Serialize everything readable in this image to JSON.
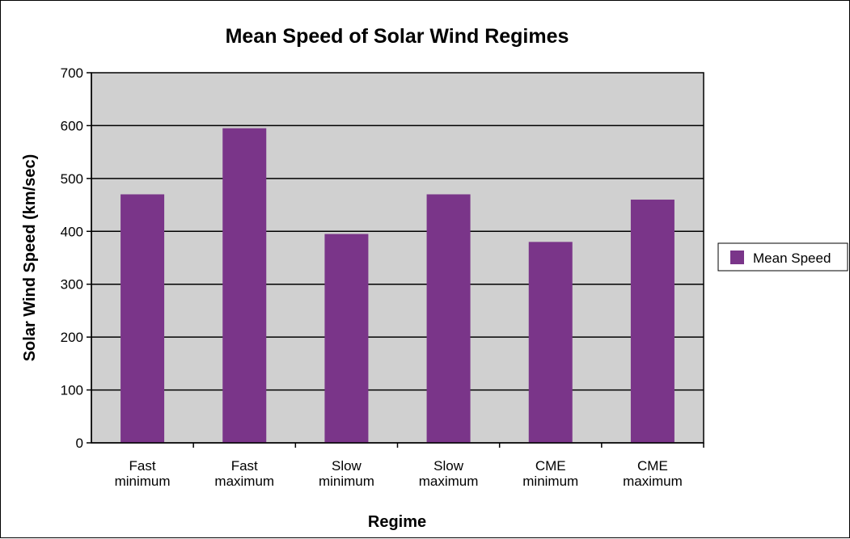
{
  "chart_data": {
    "type": "bar",
    "title": "Mean Speed of Solar Wind Regimes",
    "xlabel": "Regime",
    "ylabel": "Solar Wind Speed (km/sec)",
    "categories": [
      [
        "Fast",
        "minimum"
      ],
      [
        "Fast",
        "maximum"
      ],
      [
        "Slow",
        "minimum"
      ],
      [
        "Slow",
        "maximum"
      ],
      [
        "CME",
        "minimum"
      ],
      [
        "CME",
        "maximum"
      ]
    ],
    "series": [
      {
        "name": "Mean Speed",
        "values": [
          470,
          595,
          395,
          470,
          380,
          460
        ]
      }
    ],
    "ylim": [
      0,
      700
    ],
    "yticks": [
      "0",
      "100",
      "200",
      "300",
      "400",
      "500",
      "600",
      "700"
    ],
    "grid": true,
    "legend_position": "right",
    "colors": {
      "bar": "#7a3589",
      "plot_background": "#d0d0d0",
      "grid": "#000000"
    }
  }
}
